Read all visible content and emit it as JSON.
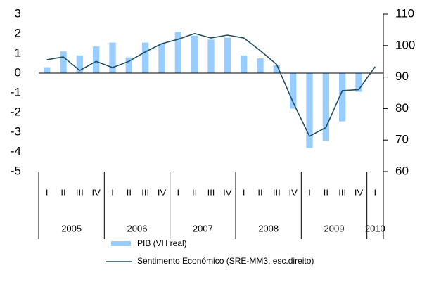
{
  "chart_data": {
    "type": "bar_line",
    "categories": [
      "I",
      "II",
      "III",
      "IV",
      "I",
      "II",
      "III",
      "IV",
      "I",
      "II",
      "III",
      "IV",
      "I",
      "II",
      "III",
      "IV",
      "I",
      "II",
      "III",
      "IV",
      "I"
    ],
    "groups": [
      "2005",
      "2006",
      "2007",
      "2008",
      "2009",
      "2010"
    ],
    "series": [
      {
        "name": "PIB (VH real)",
        "color": "#99ccff",
        "type": "bar",
        "values": [
          0.3,
          1.1,
          0.9,
          1.35,
          1.55,
          0.8,
          1.55,
          1.5,
          2.1,
          1.9,
          1.7,
          1.8,
          0.9,
          0.75,
          0.4,
          -1.8,
          -3.8,
          -3.45,
          -2.45,
          -0.95,
          null
        ]
      },
      {
        "name": "Sentimento Económico (SRE-MM3, esc.direito)",
        "color": "#1f4e5f",
        "type": "line",
        "axis": "y2",
        "values": [
          95.5,
          96.4,
          92.1,
          95,
          93,
          95,
          98,
          100.6,
          102,
          103.8,
          102.4,
          103.3,
          102.4,
          98.4,
          94,
          82,
          71.2,
          74,
          85.7,
          86,
          93.3
        ]
      }
    ],
    "ylim": [
      -5,
      3
    ],
    "yticks": [
      3,
      2,
      1,
      0,
      -1,
      -2,
      -3,
      -4,
      -5
    ],
    "y2lim": [
      60,
      110
    ],
    "y2ticks": [
      110,
      100,
      90,
      80,
      70,
      60
    ]
  }
}
